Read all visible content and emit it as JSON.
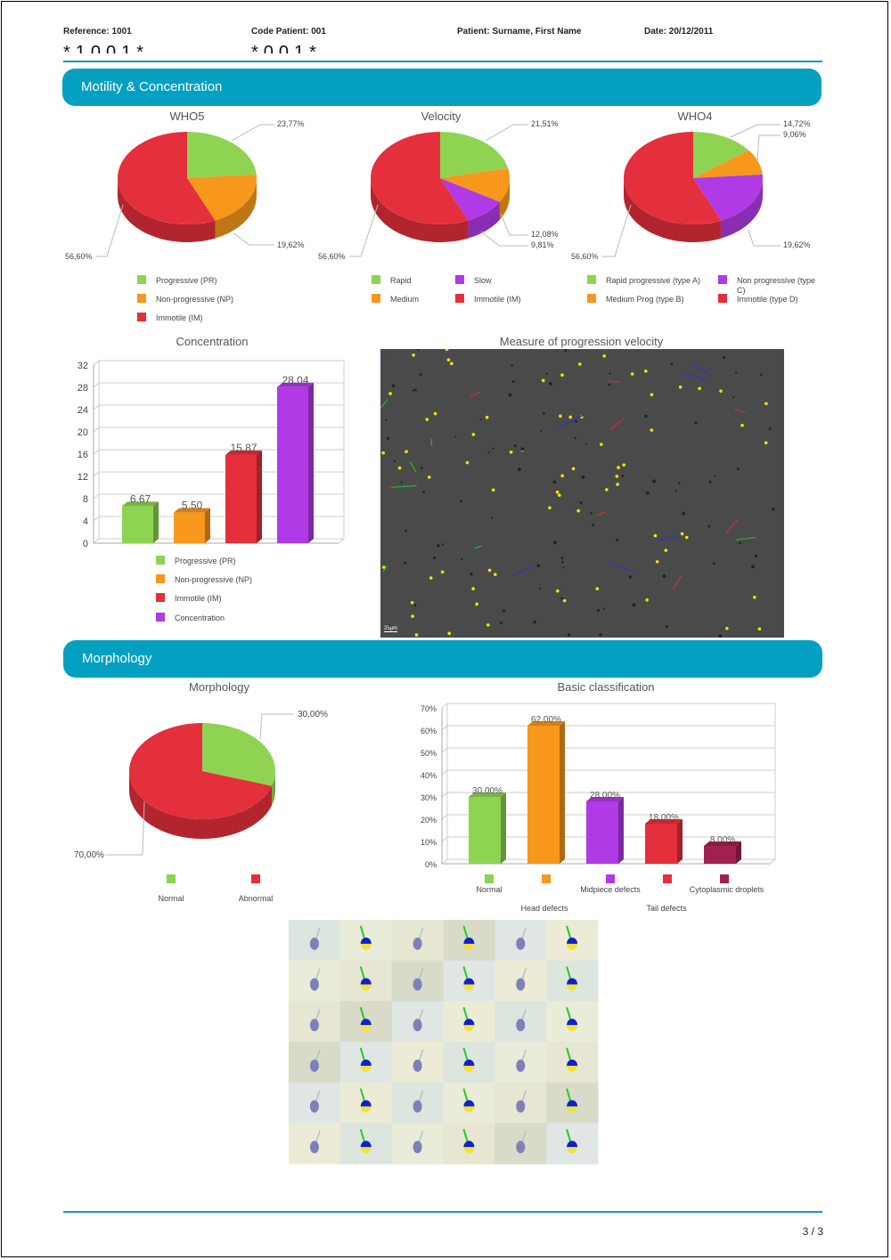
{
  "header": {
    "reference": "Reference: 1001",
    "code_patient": "Code Patient: 001",
    "patient": "Patient: Surname, First Name",
    "date": "Date: 20/12/2011",
    "barcode_1": "*1001*",
    "barcode_2": "*001*"
  },
  "sections": {
    "motility": "Motility & Concentration",
    "morphology": "Morphology"
  },
  "colors": {
    "green": "#8ed352",
    "orange": "#f7971c",
    "red": "#e42f3c",
    "purple": "#b03ae5",
    "maroon": "#a02050",
    "accent": "#03a0c2"
  },
  "chart_data": [
    {
      "type": "pie",
      "title": "WHO5",
      "labels": [
        "Progressive (PR)",
        "Non-progressive (NP)",
        "Immotile (IM)"
      ],
      "values": [
        23.77,
        19.62,
        56.6
      ],
      "value_labels": [
        "23,77%",
        "19,62%",
        "56,60%"
      ],
      "colors": [
        "#8ed352",
        "#f7971c",
        "#e42f3c"
      ]
    },
    {
      "type": "pie",
      "title": "Velocity",
      "labels": [
        "Rapid",
        "Medium",
        "Slow",
        "Immotile (IM)"
      ],
      "values": [
        21.51,
        12.08,
        9.81,
        56.6
      ],
      "value_labels": [
        "21,51%",
        "12,08%",
        "9,81%",
        "56,60%"
      ],
      "colors": [
        "#8ed352",
        "#f7971c",
        "#b03ae5",
        "#e42f3c"
      ]
    },
    {
      "type": "pie",
      "title": "WHO4",
      "labels": [
        "Rapid progressive (type A)",
        "Medium Prog (type B)",
        "Non progressive (type C)",
        "Immotile (type D)"
      ],
      "values": [
        14.72,
        9.06,
        19.62,
        56.6
      ],
      "value_labels": [
        "14,72%",
        "9,06%",
        "19,62%",
        "56,60%"
      ],
      "colors": [
        "#8ed352",
        "#f7971c",
        "#b03ae5",
        "#e42f3c"
      ]
    },
    {
      "type": "bar",
      "title": "Concentration",
      "categories": [
        "Progressive (PR)",
        "Non-progressive (NP)",
        "Immotile (IM)",
        "Concentration"
      ],
      "values": [
        6.67,
        5.5,
        15.87,
        28.04
      ],
      "value_labels": [
        "6.67",
        "5.50",
        "15.87",
        "28.04"
      ],
      "colors": [
        "#8ed352",
        "#f7971c",
        "#e42f3c",
        "#b03ae5"
      ],
      "yticks": [
        "0",
        "4",
        "8",
        "12",
        "16",
        "20",
        "24",
        "28",
        "32"
      ],
      "ylim": [
        0,
        32
      ],
      "grid": true
    },
    {
      "type": "pie",
      "title": "Morphology",
      "labels": [
        "Normal",
        "Abnormal"
      ],
      "values": [
        30.0,
        70.0
      ],
      "value_labels": [
        "30,00%",
        "70,00%"
      ],
      "colors": [
        "#8ed352",
        "#e42f3c"
      ]
    },
    {
      "type": "bar",
      "title": "Basic classification",
      "categories": [
        "Normal",
        "Head defects",
        "Midpiece defects",
        "Tail defects",
        "Cytoplasmic droplets"
      ],
      "values": [
        30,
        62,
        28,
        18,
        8
      ],
      "value_labels": [
        "30.00%",
        "62.00%",
        "28.00%",
        "18.00%",
        "8.00%"
      ],
      "colors": [
        "#8ed352",
        "#f7971c",
        "#b03ae5",
        "#e42f3c",
        "#a02050"
      ],
      "yticks": [
        "0%",
        "10%",
        "20%",
        "30%",
        "40%",
        "50%",
        "60%",
        "70%"
      ],
      "ylim": [
        0,
        70
      ],
      "grid": true
    }
  ],
  "velocity_image": {
    "title": "Measure of progression velocity",
    "scale_label": "25μm"
  },
  "footer": {
    "page": "3 / 3"
  }
}
